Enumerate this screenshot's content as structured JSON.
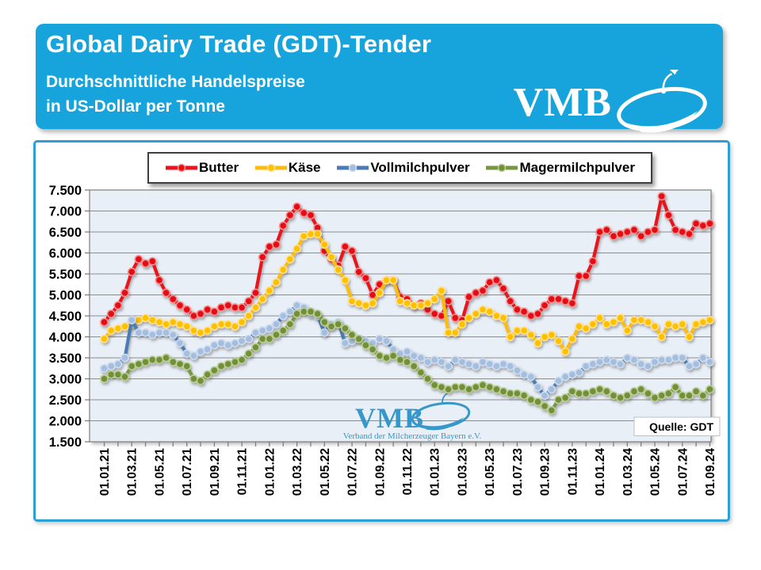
{
  "header": {
    "title": "Global Dairy Trade (GDT)-Tender",
    "subtitle1": "Durchschnittliche Handelspreise",
    "subtitle2": "in US-Dollar per Tonne",
    "logo_text": "VMB"
  },
  "colors": {
    "header_bg": "#17a4dc",
    "panel_border": "#2b9fd6",
    "plot_bg": "#e9eff7",
    "grid": "#8c8c8c",
    "axis": "#7f7f7f",
    "watermark_blue": "#2e93c8",
    "legend_border": "#3f3f3f"
  },
  "chart_data": {
    "type": "line",
    "title": "",
    "xlabel": "",
    "ylabel": "",
    "ylim": [
      1500,
      7500
    ],
    "ytick_step": 500,
    "grid": "horizontal",
    "legend_position": "top",
    "ytick_labels_top_to_bottom": [
      "7.500",
      "7.000",
      "6.500",
      "6.000",
      "5.500",
      "5.000",
      "4.500",
      "4.000",
      "3.500",
      "3.000",
      "2.500",
      "2.000",
      "1.500"
    ],
    "x_tick_labels": [
      "01.01.21",
      "01.03.21",
      "01.05.21",
      "01.07.21",
      "01.09.21",
      "01.11.21",
      "01.01.22",
      "01.03.22",
      "01.05.22",
      "01.07.22",
      "01.09.22",
      "01.11.22",
      "01.01.23",
      "01.03.23",
      "01.05.23",
      "01.07.23",
      "01.09.23",
      "01.11.23",
      "01.01.24",
      "01.03.24",
      "01.05.24",
      "01.07.24",
      "01.09.24"
    ],
    "points_per_label_interval": 4,
    "sampling": "zwei Datenpunkte je Monat (GDT-Auktionen), 01.01.21 bis 01.09.24",
    "source_label": "Quelle:  GDT",
    "watermark": {
      "text": "VMB",
      "subtext": "Verband der Milcherzeuger Bayern e.V."
    },
    "series": [
      {
        "name": "Butter",
        "color": "#e8151d",
        "marker": "#e21118",
        "ring": "#f9928f",
        "values": [
          4350,
          4550,
          4750,
          5050,
          5550,
          5850,
          5750,
          5800,
          5350,
          5050,
          4900,
          4750,
          4650,
          4500,
          4550,
          4650,
          4600,
          4700,
          4750,
          4700,
          4700,
          4850,
          5050,
          5900,
          6150,
          6200,
          6650,
          6900,
          7100,
          6950,
          6900,
          6600,
          6050,
          5850,
          5700,
          6150,
          6050,
          5550,
          5400,
          5000,
          5250,
          5350,
          5350,
          4950,
          4900,
          4750,
          4800,
          4650,
          4550,
          4500,
          4850,
          4450,
          4400,
          4950,
          5050,
          5100,
          5300,
          5350,
          5150,
          4850,
          4650,
          4600,
          4500,
          4550,
          4750,
          4900,
          4900,
          4850,
          4800,
          5450,
          5450,
          5800,
          6500,
          6550,
          6400,
          6450,
          6500,
          6550,
          6400,
          6500,
          6550,
          7350,
          6900,
          6550,
          6500,
          6450,
          6700,
          6650,
          6700
        ]
      },
      {
        "name": "Käse",
        "color": "#fdbb11",
        "marker": "#ffc000",
        "ring": "#ffe296",
        "values": [
          3950,
          4150,
          4200,
          4250,
          4300,
          4400,
          4450,
          4400,
          4350,
          4300,
          4350,
          4300,
          4250,
          4150,
          4100,
          4150,
          4250,
          4300,
          4300,
          4250,
          4350,
          4500,
          4700,
          4900,
          5100,
          5300,
          5600,
          5850,
          6100,
          6400,
          6450,
          6450,
          6200,
          5900,
          5600,
          5350,
          4850,
          4800,
          4750,
          4800,
          5050,
          5350,
          5350,
          4850,
          4800,
          4750,
          4750,
          4800,
          4900,
          5100,
          4100,
          4100,
          4300,
          4450,
          4550,
          4650,
          4600,
          4500,
          4450,
          4000,
          4150,
          4150,
          4050,
          3850,
          4000,
          4050,
          3900,
          3650,
          3950,
          4250,
          4200,
          4300,
          4450,
          4300,
          4350,
          4450,
          4150,
          4400,
          4400,
          4350,
          4250,
          4000,
          4300,
          4250,
          4300,
          4000,
          4300,
          4350,
          4400
        ]
      },
      {
        "name": "Vollmilchpulver",
        "color": "#4a7bb5",
        "marker": "#a3bede",
        "ring": "#cfdcee",
        "values": [
          3250,
          3300,
          3350,
          3500,
          4400,
          4100,
          4100,
          4050,
          4100,
          4100,
          4050,
          3850,
          3600,
          3550,
          3650,
          3700,
          3800,
          3850,
          3800,
          3850,
          3900,
          3950,
          4100,
          4150,
          4200,
          4300,
          4500,
          4600,
          4750,
          4700,
          4550,
          4500,
          4100,
          4300,
          4350,
          3850,
          3900,
          3950,
          3900,
          3850,
          3950,
          3900,
          3700,
          3600,
          3650,
          3550,
          3500,
          3400,
          3450,
          3400,
          3300,
          3450,
          3400,
          3350,
          3300,
          3400,
          3350,
          3300,
          3350,
          3300,
          3200,
          3100,
          3050,
          2800,
          2600,
          2750,
          2950,
          3050,
          3100,
          3150,
          3300,
          3350,
          3400,
          3450,
          3400,
          3350,
          3500,
          3450,
          3350,
          3300,
          3400,
          3450,
          3450,
          3500,
          3500,
          3300,
          3350,
          3500,
          3400
        ]
      },
      {
        "name": "Magermilchpulver",
        "color": "#79963f",
        "marker": "#72903b",
        "ring": "#bcce92",
        "values": [
          3000,
          3100,
          3100,
          3050,
          3300,
          3350,
          3400,
          3450,
          3450,
          3500,
          3400,
          3350,
          3300,
          3000,
          2950,
          3100,
          3200,
          3300,
          3350,
          3400,
          3450,
          3600,
          3750,
          3950,
          3950,
          4050,
          4150,
          4300,
          4550,
          4600,
          4600,
          4550,
          4350,
          4250,
          4300,
          4200,
          4050,
          3950,
          3800,
          3700,
          3550,
          3500,
          3550,
          3450,
          3400,
          3300,
          3150,
          3000,
          2850,
          2800,
          2750,
          2800,
          2800,
          2750,
          2800,
          2850,
          2800,
          2750,
          2700,
          2650,
          2650,
          2600,
          2500,
          2450,
          2350,
          2250,
          2500,
          2550,
          2700,
          2650,
          2650,
          2700,
          2750,
          2700,
          2600,
          2550,
          2600,
          2700,
          2750,
          2650,
          2550,
          2600,
          2650,
          2800,
          2600,
          2600,
          2700,
          2600,
          2750
        ]
      }
    ]
  }
}
